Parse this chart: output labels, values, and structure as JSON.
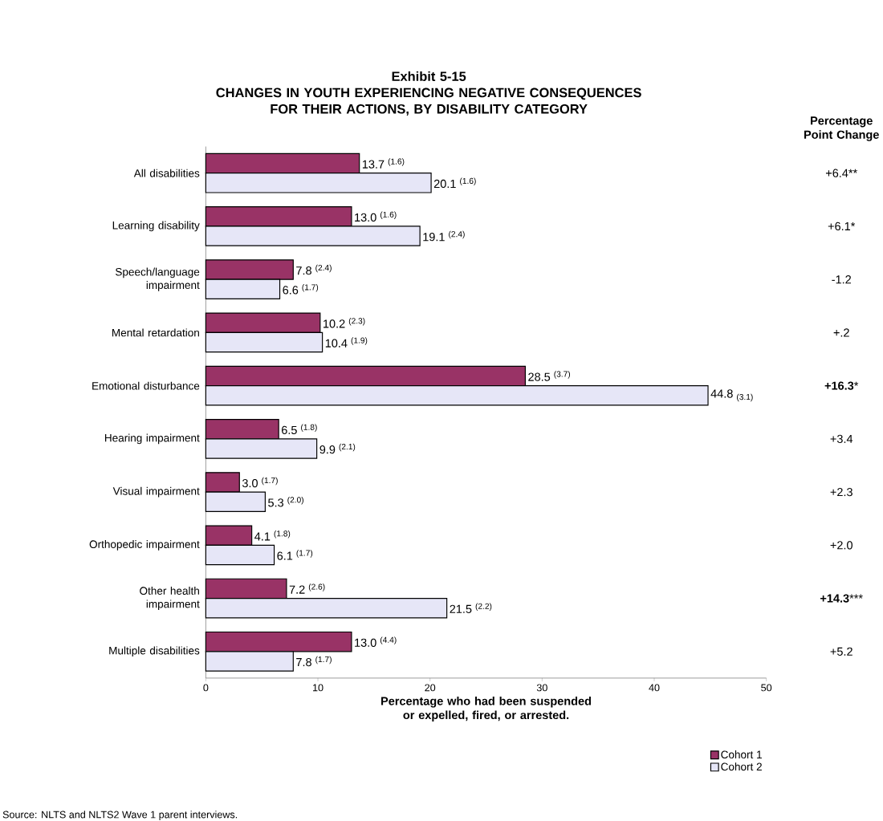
{
  "chart_data": {
    "type": "bar",
    "orientation": "horizontal",
    "title": "Exhibit 5-15\nCHANGES IN YOUTH EXPERIENCING NEGATIVE CONSEQUENCES FOR THEIR ACTIONS, BY DISABILITY CATEGORY",
    "xlabel": "Percentage who had been suspended or expelled, fired, or arrested.",
    "categories": [
      "All disabilities",
      "Learning disability",
      "Speech/language impairment",
      "Mental retardation",
      "Emotional disturbance",
      "Hearing impairment",
      "Visual impairment",
      "Orthopedic impairment",
      "Other health impairment",
      "Multiple disabilities"
    ],
    "series": [
      {
        "name": "Cohort 1",
        "color": "#993366",
        "values": [
          13.7,
          13.0,
          7.8,
          10.2,
          28.5,
          6.5,
          3.0,
          4.1,
          7.2,
          13.0
        ],
        "value_labels": [
          "13.7 $^{(1.6)}$",
          "13.0 $^{(1.6)}$",
          "7.8 $^{(2.4)}$",
          "10.2 $^{(2.3)}$",
          "28.5 $^{(3.7)}$",
          "6.5 $^{(1.8)}$",
          "3.0 $^{(1.7)}$",
          "4.1 $^{(1.8)}$",
          "7.2 $^{(2.6)}$",
          "13.0 $^{(4.4)}$"
        ]
      },
      {
        "name": "Cohort 2",
        "color": "#e6e6f7",
        "values": [
          20.1,
          19.1,
          6.6,
          10.4,
          44.8,
          9.9,
          5.3,
          6.1,
          21.5,
          7.8
        ],
        "value_labels": [
          "20.1 $^{(1.6)}$",
          "19.1 $^{(2.4)}$",
          "6.6 $^{(1.7)}$",
          "10.4 $^{(1.9)}$",
          "44.8 $_{(3.1)}$",
          "9.9 $^{(2.1)}$",
          "5.3 $^{(2.0)}$",
          "6.1 $^{(1.7)}$",
          "21.5 $^{(2.2)}$",
          "7.8 $^{(1.7)}$"
        ]
      }
    ],
    "xlim": [
      0,
      50
    ],
    "xticks": [
      0,
      10,
      20,
      30,
      40,
      50
    ],
    "legend": "bottom right",
    "annotations": [
      "Percentage Point Change",
      "+6.4**",
      "+6.1*",
      "-1.2",
      "+.2",
      "**+16.3***",
      "+3.4",
      "+2.3",
      "+2.0",
      "**+14.3*****",
      "+5.2",
      "Source: NLTS and NLTS2 Wave 1 parent interviews."
    ]
  }
}
